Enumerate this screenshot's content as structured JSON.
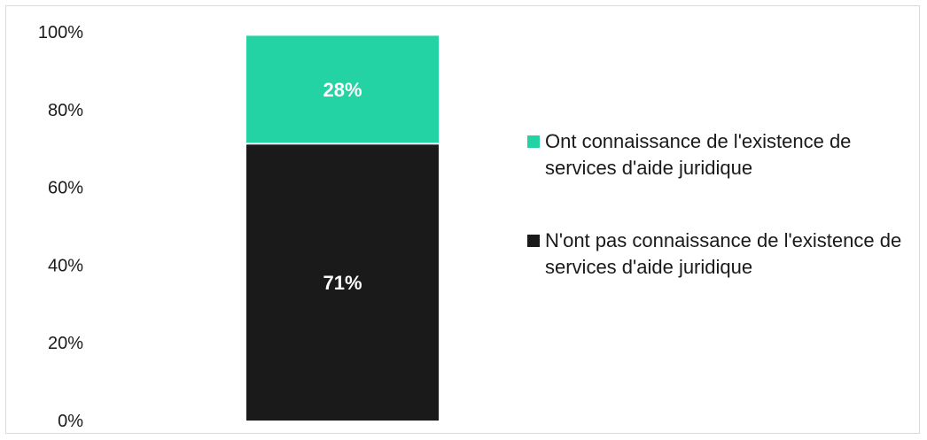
{
  "chart_data": {
    "type": "bar",
    "stacked": true,
    "categories": [
      ""
    ],
    "series": [
      {
        "name": "N'ont pas connaissance de l'existence de services d'aide juridique",
        "values": [
          71
        ],
        "color": "#1a1a1a",
        "label": "71%"
      },
      {
        "name": "Ont connaissance de l'existence de services d'aide juridique",
        "values": [
          28
        ],
        "color": "#23d3a3",
        "label": "28%"
      }
    ],
    "ylim": [
      0,
      100
    ],
    "yticks": [
      "0%",
      "20%",
      "40%",
      "60%",
      "80%",
      "100%"
    ],
    "legend_position": "right",
    "grid": false
  },
  "legend": {
    "items": [
      {
        "label": "Ont connaissance de l'existence de services d'aide juridique",
        "color": "#23d3a3"
      },
      {
        "label": "N'ont pas connaissance de l'existence de services d'aide juridique",
        "color": "#1a1a1a"
      }
    ]
  }
}
